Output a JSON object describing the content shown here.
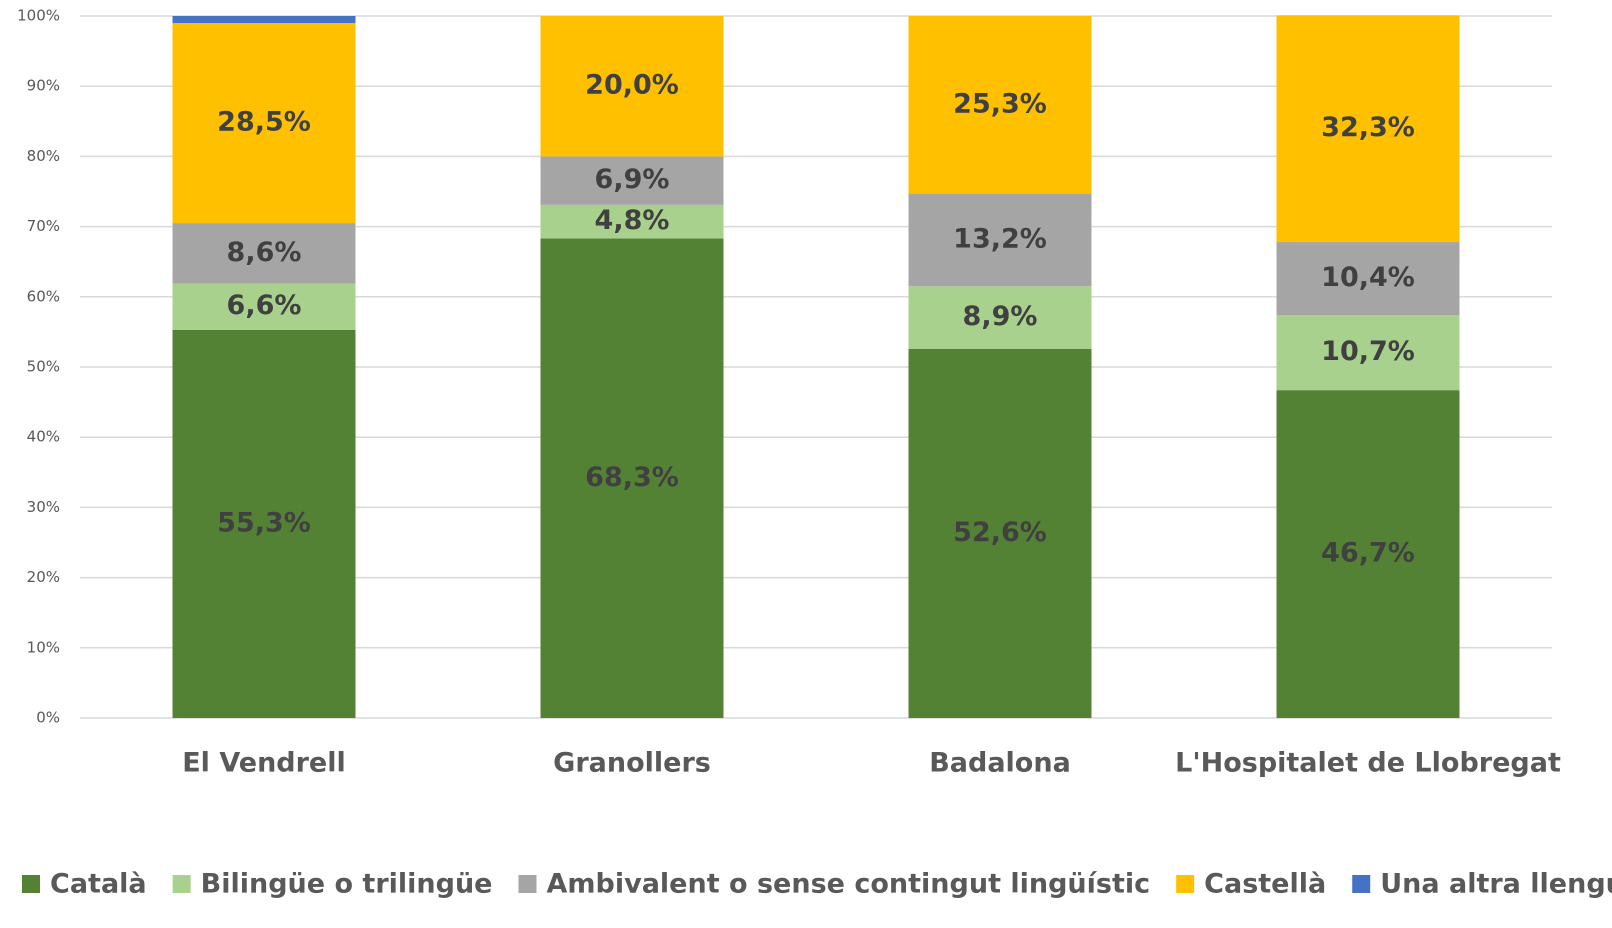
{
  "chart_data": {
    "type": "stacked_bar",
    "categories": [
      "El Vendrell",
      "Granollers",
      "Badalona",
      "L'Hospitalet de Llobregat"
    ],
    "series": [
      {
        "name": "Català",
        "color": "#548235",
        "values": [
          55.3,
          68.3,
          52.6,
          46.7
        ],
        "value_labels": [
          "55,3%",
          "68,3%",
          "52,6%",
          "46,7%"
        ]
      },
      {
        "name": "Bilingüe o trilingüe",
        "color": "#a9d18e",
        "values": [
          6.6,
          4.8,
          8.9,
          10.7
        ],
        "value_labels": [
          "6,6%",
          "4,8%",
          "8,9%",
          "10,7%"
        ]
      },
      {
        "name": "Ambivalent o sense contingut lingüístic",
        "color": "#a5a5a5",
        "values": [
          8.6,
          6.9,
          13.2,
          10.4
        ],
        "value_labels": [
          "8,6%",
          "6,9%",
          "13,2%",
          "10,4%"
        ]
      },
      {
        "name": "Castellà",
        "color": "#ffc000",
        "values": [
          28.5,
          20.0,
          25.3,
          32.3
        ],
        "value_labels": [
          "28,5%",
          "20,0%",
          "25,3%",
          "32,3%"
        ]
      },
      {
        "name": "Una altra llengua",
        "color": "#4472c4",
        "values": [
          1.0,
          0,
          0,
          0
        ]
      }
    ],
    "ylim": [
      0,
      100
    ],
    "yticks": [
      {
        "value": 0,
        "label": "0%"
      },
      {
        "value": 10,
        "label": "10%"
      },
      {
        "value": 20,
        "label": "20%"
      },
      {
        "value": 30,
        "label": "30%"
      },
      {
        "value": 40,
        "label": "40%"
      },
      {
        "value": 50,
        "label": "50%"
      },
      {
        "value": 60,
        "label": "60%"
      },
      {
        "value": 70,
        "label": "70%"
      },
      {
        "value": 80,
        "label": "80%"
      },
      {
        "value": 90,
        "label": "90%"
      },
      {
        "value": 100,
        "label": "100%"
      }
    ],
    "grid": true,
    "legend": "bottom"
  }
}
